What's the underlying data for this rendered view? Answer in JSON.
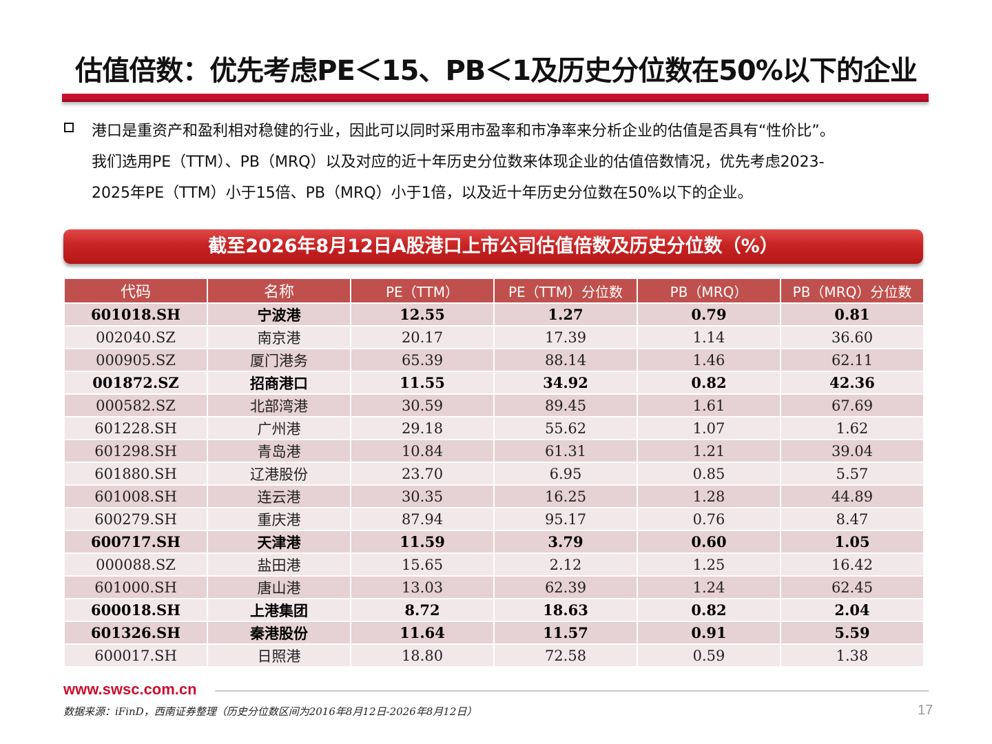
{
  "slide": {
    "title": "估值倍数：优先考虑PE＜15、PB＜1及历史分位数在50%以下的企业",
    "intro_lines": [
      "港口是重资产和盈利相对稳健的行业，因此可以同时采用市盈率和市净率来分析企业的估值是否具有“性价比”。",
      "我们选用PE（TTM）、PB（MRQ）以及对应的近十年历史分位数来体现企业的估值倍数情况，优先考虑2023-",
      "2025年PE（TTM）小于15倍、PB（MRQ）小于1倍，以及近十年历史分位数在50%以下的企业。"
    ],
    "table_title": "截至2026年8月12日A股港口上市公司估值倍数及历史分位数（%）",
    "page_number": "17"
  },
  "table": {
    "headers": [
      "代码",
      "名称",
      "PE（TTM）",
      "PE（TTM）分位数",
      "PB（MRQ）",
      "PB（MRQ）分位数"
    ],
    "rows": [
      {
        "code": "601018.SH",
        "name": "宁波港",
        "pe": "12.55",
        "pe_pct": "1.27",
        "pb": "0.79",
        "pb_pct": "0.81",
        "highlight": true
      },
      {
        "code": "002040.SZ",
        "name": "南京港",
        "pe": "20.17",
        "pe_pct": "17.39",
        "pb": "1.14",
        "pb_pct": "36.60",
        "highlight": false
      },
      {
        "code": "000905.SZ",
        "name": "厦门港务",
        "pe": "65.39",
        "pe_pct": "88.14",
        "pb": "1.46",
        "pb_pct": "62.11",
        "highlight": false
      },
      {
        "code": "001872.SZ",
        "name": "招商港口",
        "pe": "11.55",
        "pe_pct": "34.92",
        "pb": "0.82",
        "pb_pct": "42.36",
        "highlight": true
      },
      {
        "code": "000582.SZ",
        "name": "北部湾港",
        "pe": "30.59",
        "pe_pct": "89.45",
        "pb": "1.61",
        "pb_pct": "67.69",
        "highlight": false
      },
      {
        "code": "601228.SH",
        "name": "广州港",
        "pe": "29.18",
        "pe_pct": "55.62",
        "pb": "1.07",
        "pb_pct": "1.62",
        "highlight": false
      },
      {
        "code": "601298.SH",
        "name": "青岛港",
        "pe": "10.84",
        "pe_pct": "61.31",
        "pb": "1.21",
        "pb_pct": "39.04",
        "highlight": false
      },
      {
        "code": "601880.SH",
        "name": "辽港股份",
        "pe": "23.70",
        "pe_pct": "6.95",
        "pb": "0.85",
        "pb_pct": "5.57",
        "highlight": false
      },
      {
        "code": "601008.SH",
        "name": "连云港",
        "pe": "30.35",
        "pe_pct": "16.25",
        "pb": "1.28",
        "pb_pct": "44.89",
        "highlight": false
      },
      {
        "code": "600279.SH",
        "name": "重庆港",
        "pe": "87.94",
        "pe_pct": "95.17",
        "pb": "0.76",
        "pb_pct": "8.47",
        "highlight": false
      },
      {
        "code": "600717.SH",
        "name": "天津港",
        "pe": "11.59",
        "pe_pct": "3.79",
        "pb": "0.60",
        "pb_pct": "1.05",
        "highlight": true
      },
      {
        "code": "000088.SZ",
        "name": "盐田港",
        "pe": "15.65",
        "pe_pct": "2.12",
        "pb": "1.25",
        "pb_pct": "16.42",
        "highlight": false
      },
      {
        "code": "601000.SH",
        "name": "唐山港",
        "pe": "13.03",
        "pe_pct": "62.39",
        "pb": "1.24",
        "pb_pct": "62.45",
        "highlight": false
      },
      {
        "code": "600018.SH",
        "name": "上港集团",
        "pe": "8.72",
        "pe_pct": "18.63",
        "pb": "0.82",
        "pb_pct": "2.04",
        "highlight": true
      },
      {
        "code": "601326.SH",
        "name": "秦港股份",
        "pe": "11.64",
        "pe_pct": "11.57",
        "pb": "0.91",
        "pb_pct": "5.59",
        "highlight": true
      },
      {
        "code": "600017.SH",
        "name": "日照港",
        "pe": "18.80",
        "pe_pct": "72.58",
        "pb": "0.59",
        "pb_pct": "1.38",
        "highlight": false
      }
    ]
  },
  "footer": {
    "url": "www.swsc.com.cn",
    "source": "数据来源：iFinD，西南证券整理（历史分位数区间为2016年8月12日-2026年8月12日）"
  },
  "colors": {
    "accent_red": "#c8102e",
    "header_fill": "#c0504d",
    "row_odd": "#e6d1d3",
    "row_even": "#f2e8e9"
  }
}
